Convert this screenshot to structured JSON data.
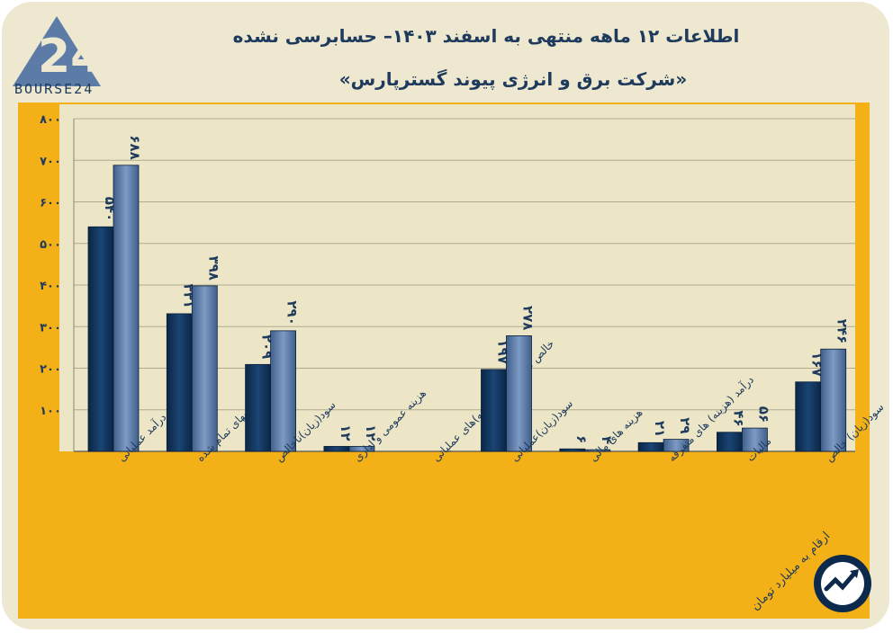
{
  "header": {
    "title": "اطلاعات ۱۲ ماهه منتهی به اسفند ۱۴۰۳– حسابرسی نشده",
    "subtitle": "«شرکت برق و انرژی پیوند گسترپارس»",
    "logo_text": "BOURSE24"
  },
  "footer": {
    "units": "ارقام به میلیارد تومان"
  },
  "colors": {
    "background": "#ede8cf",
    "frame": "#f3b017",
    "plot": "#ece6c7",
    "series_dark": "#133861",
    "series_light": "#5c7ba6",
    "text": "#1e3a5c"
  },
  "chart_data": {
    "type": "bar",
    "categories": [
      "درآمد عملیاتی",
      "بهای تمام شده",
      "سود(زیان)ناخالص",
      "هزینه عمومی و اداری",
      "خالص سایر درآمد(هزینه)های عملیاتی",
      "سود(زیان)عملیاتی",
      "هزینه های مالی",
      "درآمد (هزینه) های متفرقه",
      "مالیات",
      "سود(زیان) خالص"
    ],
    "series": [
      {
        "values": [
          540,
          331,
          209,
          12,
          0,
          197,
          6,
          21,
          46,
          167
        ]
      },
      {
        "values": [
          688,
          398,
          290,
          12,
          0,
          278,
          4,
          29,
          56,
          246
        ]
      }
    ],
    "data_labels": [
      [
        "۵۴۰",
        "۳۳۱",
        "۲۰۹",
        "۱۲",
        "",
        "۱۹۷",
        "۶",
        "۲۱",
        "۴۶",
        "۱۶۷"
      ],
      [
        "۶۸۸",
        "۳۹۸",
        "۲۹۰",
        "۱۲",
        "",
        "۲۷۸",
        "۴",
        "۲۹",
        "۵۶",
        "۲۴۶"
      ]
    ],
    "y_ticks": [
      100,
      200,
      300,
      400,
      500,
      600,
      700,
      800
    ],
    "y_tick_labels": [
      "۱۰۰",
      "۲۰۰",
      "۳۰۰",
      "۴۰۰",
      "۵۰۰",
      "۶۰۰",
      "۷۰۰",
      "۸۰۰"
    ],
    "ylim": [
      0,
      800
    ],
    "grid": true,
    "legend": "none"
  }
}
